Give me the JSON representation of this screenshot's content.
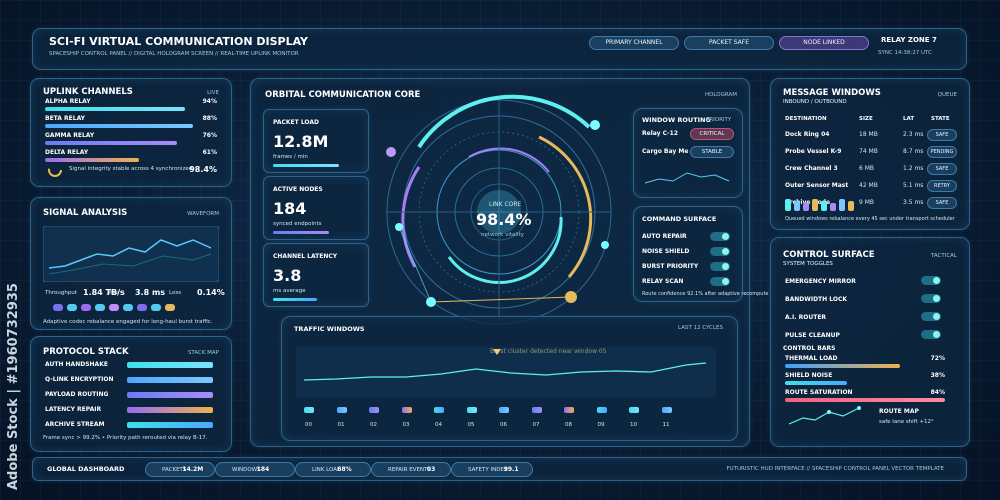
{
  "header": {
    "title": "SCI-FI VIRTUAL COMMUNICATION DISPLAY",
    "subtitle": "SPACESHIP CONTROL PANEL // DIGITAL HOLOGRAM SCREEN // REAL-TIME UPLINK MONITOR",
    "chips": [
      "PRIMARY CHANNEL",
      "PACKET SAFE",
      "NODE LINKED"
    ],
    "zone": "RELAY ZONE 7",
    "sync": "SYNC 14:38:27 UTC"
  },
  "watermark": "Adobe Stock | #1960732935",
  "uplink": {
    "title": "UPLINK CHANNELS",
    "tag": "LIVE",
    "rows": [
      {
        "name": "ALPHA RELAY",
        "value": "94%"
      },
      {
        "name": "BETA RELAY",
        "value": "88%"
      },
      {
        "name": "GAMMA RELAY",
        "value": "76%"
      },
      {
        "name": "DELTA RELAY",
        "value": "61%"
      }
    ],
    "note": "Signal integrity stable across 4 synchronized",
    "score": "98.4%"
  },
  "signal": {
    "title": "SIGNAL ANALYSIS",
    "tag": "WAVEFORM",
    "metrics": [
      {
        "label": "Throughput",
        "value": "1.84 TB/s"
      },
      {
        "label": "Jitter",
        "value": "3.8 ms"
      },
      {
        "label": "Loss",
        "value": "0.14%"
      }
    ],
    "note": "Adaptive codec rebalance engaged for long-haul burst traffic."
  },
  "protocol": {
    "title": "PROTOCOL STACK",
    "tag": "STACK MAP",
    "items": [
      "AUTH HANDSHAKE",
      "Q-LINK ENCRYPTION",
      "PAYLOAD ROUTING",
      "LATENCY REPAIR",
      "ARCHIVE STREAM"
    ],
    "note": "Frame sync > 99.2% • Priority path rerouted via relay B-17."
  },
  "core": {
    "title": "ORBITAL COMMUNICATION CORE",
    "tag": "HOLOGRAM",
    "stats": [
      {
        "label": "PACKET LOAD",
        "value": "12.8M",
        "unit": "frames / min"
      },
      {
        "label": "ACTIVE NODES",
        "value": "184",
        "unit": "synced endpoints"
      },
      {
        "label": "CHANNEL LATENCY",
        "value": "3.8",
        "unit": "ms average"
      }
    ],
    "center": {
      "label": "LINK CORE",
      "value": "98.4%",
      "caption": "network vitality"
    }
  },
  "routing": {
    "title": "WINDOW ROUTING",
    "tag": "PRIORITY",
    "rows": [
      {
        "name": "Relay C-12",
        "state": "CRITICAL"
      },
      {
        "name": "Cargo Bay Me",
        "state": "STABLE"
      }
    ]
  },
  "command": {
    "title": "COMMAND SURFACE",
    "toggles": [
      "AUTO REPAIR",
      "NOISE SHIELD",
      "BURST PRIORITY",
      "RELAY SCAN"
    ],
    "note": "Route confidence 92.1% after adaptive recompute"
  },
  "traffic": {
    "title": "TRAFFIC WINDOWS",
    "tag": "LAST 12 CYCLES",
    "alert": "Burst cluster detected near window 05",
    "windows": [
      "00",
      "01",
      "02",
      "03",
      "04",
      "05",
      "06",
      "07",
      "08",
      "09",
      "10",
      "11"
    ]
  },
  "messages": {
    "title": "MESSAGE WINDOWS",
    "subtitle": "INBOUND / OUTBOUND",
    "tag": "QUEUE",
    "columns": [
      "DESTINATION",
      "SIZE",
      "LAT",
      "STATE"
    ],
    "rows": [
      [
        "Dock Ring 04",
        "18 MB",
        "2.3 ms",
        "SAFE"
      ],
      [
        "Probe Vessel K-9",
        "74 MB",
        "8.7 ms",
        "PENDING"
      ],
      [
        "Crew Channel 3",
        "6 MB",
        "1.2 ms",
        "SAFE"
      ],
      [
        "Outer Sensor Mast",
        "42 MB",
        "5.1 ms",
        "RETRY"
      ],
      [
        "Archive Node",
        "9 MB",
        "3.5 ms",
        "SAFE"
      ]
    ],
    "note": "Queued windows rebalance every 45 sec under transport scheduler"
  },
  "control": {
    "title": "CONTROL SURFACE",
    "subtitle": "SYSTEM TOGGLES",
    "tag": "TACTICAL",
    "toggles": [
      "EMERGENCY MIRROR",
      "BANDWIDTH LOCK",
      "A.I. ROUTER",
      "PULSE CLEANUP"
    ],
    "bars_title": "CONTROL BARS",
    "bars": [
      {
        "name": "THERMAL LOAD",
        "value": "72%"
      },
      {
        "name": "SHIELD NOISE",
        "value": "38%"
      },
      {
        "name": "ROUTE SATURATION",
        "value": "84%"
      }
    ],
    "map_title": "ROUTE MAP",
    "map_note": "safe lane shift +12°"
  },
  "footer": {
    "title": "GLOBAL DASHBOARD",
    "stats": [
      {
        "label": "PACKETS",
        "value": "14.2M"
      },
      {
        "label": "WINDOWS",
        "value": "184"
      },
      {
        "label": "LINK LOAD",
        "value": "68%"
      },
      {
        "label": "REPAIR EVENTS",
        "value": "03"
      },
      {
        "label": "SAFETY INDEX",
        "value": "99.1"
      }
    ],
    "caption": "FUTURISTIC HUD INTERFACE // SPACESHIP CONTROL PANEL VECTOR TEMPLATE"
  }
}
